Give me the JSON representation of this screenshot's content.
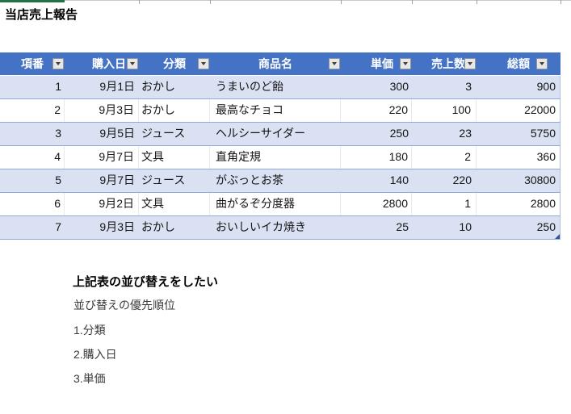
{
  "title": "当店売上報告",
  "table": {
    "columns": [
      {
        "label": "項番"
      },
      {
        "label": "購入日"
      },
      {
        "label": "分類"
      },
      {
        "label": "商品名"
      },
      {
        "label": "単価"
      },
      {
        "label": "売上数"
      },
      {
        "label": "総額"
      }
    ],
    "rows": [
      [
        "1",
        "9月1日",
        "おかし",
        "うまいのど飴",
        "300",
        "3",
        "900"
      ],
      [
        "2",
        "9月3日",
        "おかし",
        "最高なチョコ",
        "220",
        "100",
        "22000"
      ],
      [
        "3",
        "9月5日",
        "ジュース",
        "ヘルシーサイダー",
        "250",
        "23",
        "5750"
      ],
      [
        "4",
        "9月7日",
        "文具",
        "直角定規",
        "180",
        "2",
        "360"
      ],
      [
        "5",
        "9月7日",
        "ジュース",
        "がぶっとお茶",
        "140",
        "220",
        "30800"
      ],
      [
        "6",
        "9月2日",
        "文具",
        "曲がるぞ分度器",
        "2800",
        "1",
        "2800"
      ],
      [
        "7",
        "9月3日",
        "おかし",
        "おいしいイカ焼き",
        "25",
        "10",
        "250"
      ]
    ]
  },
  "notes": {
    "heading": "上記表の並び替えをしたい",
    "subheading": "並び替えの優先順位",
    "items": [
      "1.分類",
      "2.購入日",
      "3.単価"
    ]
  },
  "icons": {
    "filter_dropdown": "triangle-down-icon"
  },
  "colors": {
    "header": "#4472C4",
    "band": "#D9E1F2",
    "border": "#8EA9DB",
    "green": "#217346",
    "handle": "#2F5597"
  }
}
